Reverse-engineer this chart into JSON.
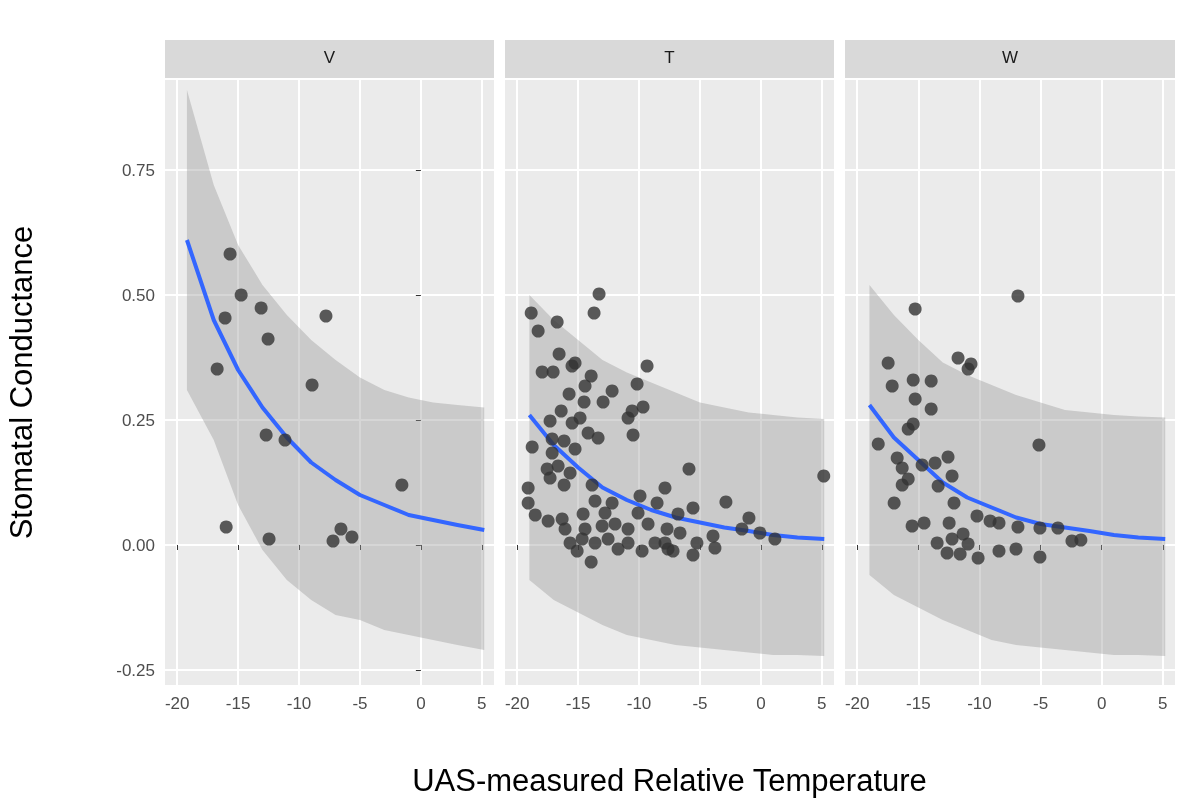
{
  "chart_data": [
    {
      "type": "scatter",
      "title": "V",
      "ylabel": "Stomatal Conductance",
      "xlim": [
        -21,
        6
      ],
      "xticks": [
        -20,
        -15,
        -10,
        -5,
        0,
        5
      ],
      "ylim": [
        -0.28,
        0.93
      ],
      "yticks": [
        {
          "value": -0.25,
          "label": "-0.25"
        },
        {
          "value": 0,
          "label": "0.00"
        },
        {
          "value": 0.25,
          "label": "0.25"
        },
        {
          "value": 0.5,
          "label": "0.50"
        },
        {
          "value": 0.75,
          "label": "0.75"
        }
      ],
      "grid": true,
      "series": [
        {
          "type": "scatter",
          "marker": "circle",
          "color": "#333333",
          "x": [
            -15.66,
            -14.75,
            -16.07,
            -13.11,
            -12.54,
            -16.72,
            -7.79,
            -8.93,
            -12.7,
            -11.15,
            -1.56,
            -15.98,
            -12.46,
            -7.21,
            -6.56,
            -5.66
          ],
          "values": [
            0.582,
            0.5,
            0.454,
            0.474,
            0.412,
            0.352,
            0.458,
            0.32,
            0.22,
            0.21,
            0.12,
            0.036,
            0.012,
            0.008,
            0.032,
            0.016
          ]
        },
        {
          "type": "line",
          "color": "#3366ff",
          "x": [
            -19.2,
            -17,
            -15,
            -13,
            -11,
            -9,
            -7,
            -5,
            -3,
            -1,
            1,
            3,
            5.2
          ],
          "values": [
            0.61,
            0.45,
            0.35,
            0.275,
            0.215,
            0.165,
            0.13,
            0.1,
            0.08,
            0.06,
            0.05,
            0.04,
            0.03
          ],
          "upper": [
            0.91,
            0.72,
            0.6,
            0.52,
            0.46,
            0.41,
            0.37,
            0.335,
            0.31,
            0.295,
            0.285,
            0.28,
            0.275
          ],
          "lower": [
            0.31,
            0.21,
            0.08,
            -0.01,
            -0.07,
            -0.11,
            -0.14,
            -0.15,
            -0.17,
            -0.18,
            -0.19,
            -0.2,
            -0.21
          ]
        }
      ]
    },
    {
      "type": "scatter",
      "title": "T",
      "xlabel": "UAS-measured Relative Temperature",
      "xlim": [
        -21,
        6
      ],
      "xticks": [
        -20,
        -15,
        -10,
        -5,
        0,
        5
      ],
      "ylim": [
        -0.28,
        0.93
      ],
      "yticks": [
        -0.25,
        0,
        0.25,
        0.5,
        0.75
      ],
      "tick_labels": "x",
      "grid": true,
      "series": [
        {
          "type": "scatter",
          "marker": "circle",
          "color": "#333333",
          "x": [
            -13.28,
            -13.69,
            -18.85,
            -16.72,
            -18.28,
            -9.34,
            -16.56,
            -15.25,
            -15.5,
            -17.95,
            -17.05,
            -13.93,
            -14.43,
            -10.16,
            -12.21,
            -15.74,
            -14.51,
            -12.95,
            -16.39,
            -9.67,
            -10.57,
            -10.9,
            -17.3,
            -14.84,
            -15.49,
            -14.18,
            -13.36,
            -10.49,
            -18.77,
            -17.13,
            -16.15,
            -17.13,
            -15.25,
            -17.54,
            -16.64,
            -15.66,
            -17.3,
            -16.15,
            -19.1,
            -19.1,
            -13.85,
            -7.87,
            -13.61,
            -12.21,
            -9.92,
            -8.52,
            -18.52,
            -17.46,
            -16.31,
            -14.59,
            -12.79,
            -10.08,
            -16.07,
            -14.43,
            -13.03,
            -11.97,
            -10.9,
            -9.26,
            -15.66,
            -14.67,
            -13.61,
            -12.54,
            -11.72,
            -10.9,
            -9.75,
            -8.69,
            -7.62,
            -13.93,
            -15.08,
            -5.9,
            -5.57,
            -2.87,
            -0.98,
            -6.8,
            -1.56,
            -0.08,
            1.15,
            -3.93,
            -3.77,
            -5.57,
            -7.21,
            -7.87,
            -5.25,
            -6.64,
            -7.7,
            5.16
          ],
          "values": [
            0.502,
            0.464,
            0.464,
            0.446,
            0.428,
            0.358,
            0.382,
            0.364,
            0.358,
            0.346,
            0.346,
            0.338,
            0.318,
            0.322,
            0.308,
            0.302,
            0.286,
            0.286,
            0.268,
            0.276,
            0.268,
            0.254,
            0.248,
            0.254,
            0.244,
            0.224,
            0.214,
            0.22,
            0.196,
            0.212,
            0.208,
            0.184,
            0.192,
            0.152,
            0.158,
            0.144,
            0.134,
            0.12,
            0.114,
            0.084,
            0.12,
            0.114,
            0.088,
            0.084,
            0.098,
            0.084,
            0.06,
            0.048,
            0.052,
            0.062,
            0.064,
            0.064,
            0.032,
            0.032,
            0.038,
            0.042,
            0.032,
            0.042,
            0.004,
            0.012,
            0.004,
            0.012,
            -0.008,
            0.004,
            -0.012,
            0.004,
            -0.008,
            -0.034,
            -0.012,
            0.152,
            0.074,
            0.086,
            0.054,
            0.062,
            0.032,
            0.024,
            0.012,
            0.018,
            -0.006,
            -0.02,
            -0.012,
            0.004,
            0.004,
            0.024,
            0.032,
            0.138
          ]
        },
        {
          "type": "line",
          "color": "#3366ff",
          "x": [
            -19,
            -17,
            -15,
            -13,
            -11,
            -9,
            -7,
            -5,
            -3,
            -1,
            1,
            3,
            5.2
          ],
          "values": [
            0.26,
            0.2,
            0.155,
            0.115,
            0.09,
            0.07,
            0.055,
            0.045,
            0.035,
            0.028,
            0.02,
            0.015,
            0.012
          ],
          "upper": [
            0.5,
            0.45,
            0.41,
            0.37,
            0.345,
            0.325,
            0.305,
            0.285,
            0.275,
            0.265,
            0.26,
            0.255,
            0.252
          ],
          "lower": [
            -0.07,
            -0.11,
            -0.135,
            -0.16,
            -0.18,
            -0.19,
            -0.2,
            -0.205,
            -0.21,
            -0.215,
            -0.22,
            -0.22,
            -0.222
          ]
        }
      ]
    },
    {
      "type": "scatter",
      "title": "W",
      "xlim": [
        -21,
        6
      ],
      "xticks": [
        -20,
        -15,
        -10,
        -5,
        0,
        5
      ],
      "ylim": [
        -0.28,
        0.93
      ],
      "yticks": [
        -0.25,
        0,
        0.25,
        0.5,
        0.75
      ],
      "tick_labels": "x",
      "grid": true,
      "series": [
        {
          "type": "scatter",
          "marker": "circle",
          "color": "#333333",
          "x": [
            -6.85,
            -15.26,
            -11.75,
            -10.69,
            -10.93,
            -17.47,
            -17.14,
            -15.42,
            -13.95,
            -15.26,
            -13.95,
            -15.42,
            -15.83,
            -18.28,
            -5.13,
            -16.73,
            -16.32,
            -12.57,
            -13.63,
            -14.69,
            -12.24,
            -15.83,
            -16.32,
            -13.38,
            -16.98,
            -12.08,
            -10.2,
            -9.13,
            -8.4,
            -15.51,
            -14.53,
            -12.48,
            -6.85,
            -5.05,
            -3.58,
            -2.43,
            -1.7,
            -13.46,
            -12.24,
            -11.34,
            -10.93,
            -12.65,
            -11.58,
            -10.11,
            -8.4,
            -7.01,
            -5.05
          ],
          "values": [
            0.498,
            0.472,
            0.374,
            0.362,
            0.352,
            0.364,
            0.318,
            0.33,
            0.328,
            0.292,
            0.272,
            0.242,
            0.232,
            0.202,
            0.2,
            0.174,
            0.154,
            0.176,
            0.164,
            0.16,
            0.138,
            0.132,
            0.12,
            0.118,
            0.084,
            0.084,
            0.058,
            0.048,
            0.044,
            0.038,
            0.044,
            0.044,
            0.036,
            0.034,
            0.034,
            0.008,
            0.01,
            0.004,
            0.012,
            0.022,
            0.002,
            -0.016,
            -0.018,
            -0.026,
            -0.012,
            -0.008,
            -0.024
          ]
        },
        {
          "type": "line",
          "color": "#3366ff",
          "x": [
            -19,
            -17,
            -15,
            -13,
            -11,
            -9,
            -7,
            -5,
            -3,
            -1,
            1,
            3,
            5.2
          ],
          "values": [
            0.28,
            0.215,
            0.17,
            0.125,
            0.095,
            0.075,
            0.055,
            0.042,
            0.035,
            0.028,
            0.02,
            0.015,
            0.012
          ],
          "upper": [
            0.52,
            0.46,
            0.41,
            0.365,
            0.34,
            0.32,
            0.3,
            0.285,
            0.27,
            0.265,
            0.26,
            0.257,
            0.255
          ],
          "lower": [
            -0.06,
            -0.1,
            -0.125,
            -0.15,
            -0.17,
            -0.19,
            -0.2,
            -0.205,
            -0.21,
            -0.215,
            -0.22,
            -0.22,
            -0.222
          ]
        }
      ]
    }
  ]
}
